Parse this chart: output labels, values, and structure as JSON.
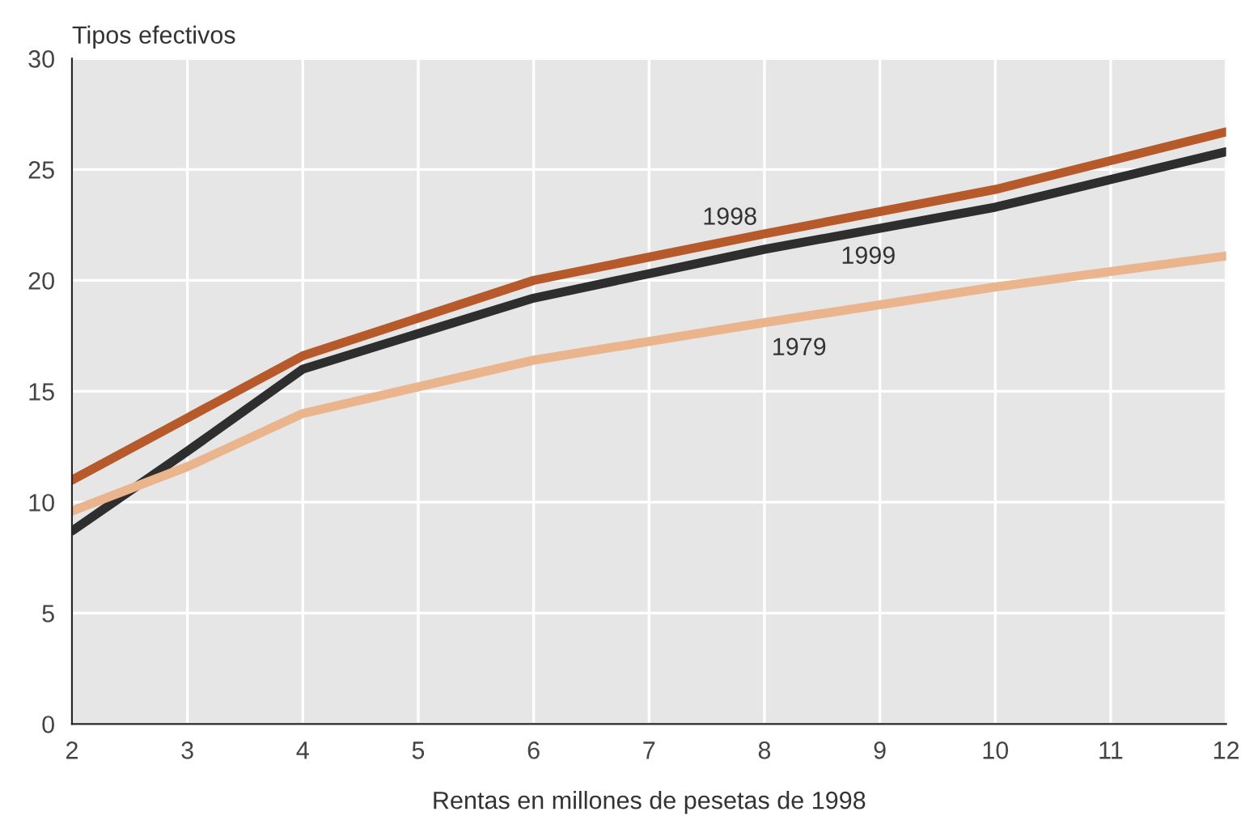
{
  "chart_data": {
    "type": "line",
    "ylabel": "Tipos efectivos",
    "xlabel": "Rentas en millones de pesetas de 1998",
    "xlim": [
      2,
      12
    ],
    "xticks": [
      2,
      3,
      4,
      5,
      6,
      7,
      8,
      9,
      10,
      11,
      12
    ],
    "ylim": [
      0,
      30
    ],
    "yticks": [
      0,
      5,
      10,
      15,
      20,
      25,
      30
    ],
    "grid": true,
    "marker": "none",
    "line_style": "solid",
    "x": [
      2,
      3,
      4,
      6,
      8,
      10,
      12
    ],
    "series": [
      {
        "name": "1998",
        "color": "#b65a2c",
        "values": [
          11.0,
          13.8,
          16.6,
          20.0,
          22.1,
          24.1,
          26.7
        ]
      },
      {
        "name": "1999",
        "color": "#2e2e2e",
        "values": [
          8.7,
          12.3,
          16.0,
          19.2,
          21.4,
          23.3,
          25.8
        ]
      },
      {
        "name": "1979",
        "color": "#eab48c",
        "values": [
          9.6,
          11.6,
          14.0,
          16.4,
          18.1,
          19.7,
          21.1
        ]
      }
    ]
  }
}
